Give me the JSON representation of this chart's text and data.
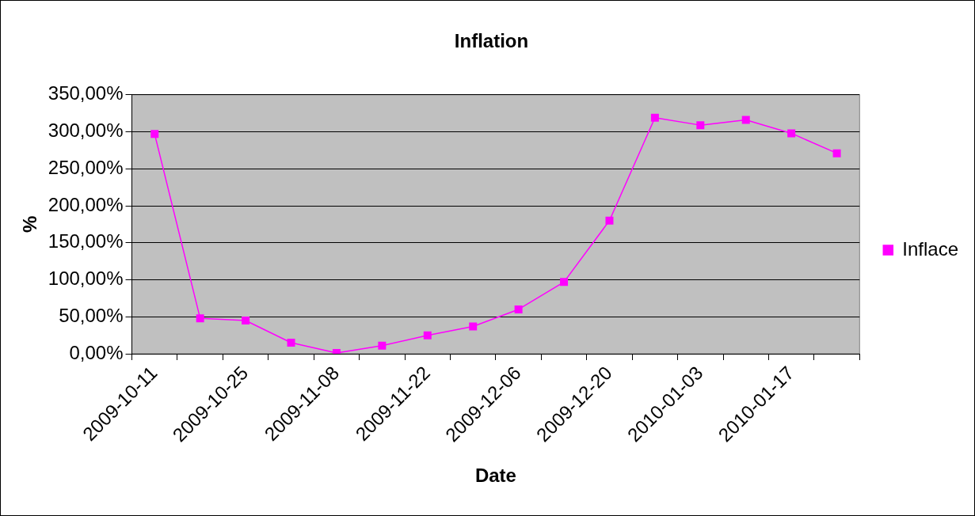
{
  "chart_data": {
    "type": "line",
    "title": "Inflation",
    "xlabel": "Date",
    "ylabel": "%",
    "categories": [
      "2009-10-11",
      null,
      "2009-10-25",
      null,
      "2009-11-08",
      null,
      "2009-11-22",
      null,
      "2009-12-06",
      null,
      "2009-12-20",
      null,
      "2010-01-03",
      null,
      "2010-01-17",
      null
    ],
    "series": [
      {
        "name": "Inflace",
        "color": "#ff00ff",
        "values": [
          297,
          48,
          45,
          15,
          1,
          11,
          25,
          37,
          60,
          97,
          180,
          319,
          309,
          316,
          298,
          271
        ]
      }
    ],
    "ylim": [
      0,
      350
    ],
    "yticks": [
      {
        "value": 0,
        "label": "0,00%"
      },
      {
        "value": 50,
        "label": "50,00%"
      },
      {
        "value": 100,
        "label": "100,00%"
      },
      {
        "value": 150,
        "label": "150,00%"
      },
      {
        "value": 200,
        "label": "200,00%"
      },
      {
        "value": 250,
        "label": "250,00%"
      },
      {
        "value": 300,
        "label": "300,00%"
      },
      {
        "value": 350,
        "label": "350,00%"
      }
    ],
    "grid": "y",
    "legend": "right",
    "marker": "square",
    "line_style": "solid"
  }
}
